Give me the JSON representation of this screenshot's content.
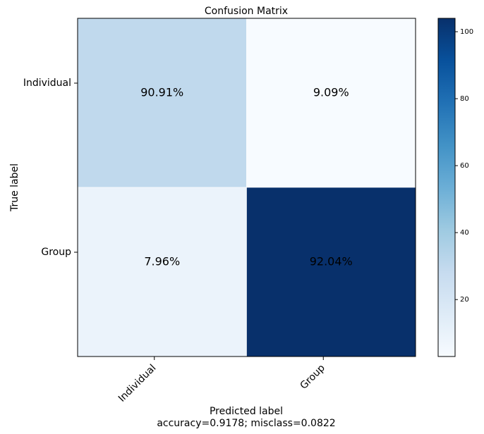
{
  "chart_data": {
    "type": "heatmap",
    "title": "Confusion Matrix",
    "xlabel": "Predicted label",
    "xlabel_sub": "accuracy=0.9178; misclass=0.0822",
    "ylabel": "True label",
    "x_categories": [
      "Individual",
      "Group"
    ],
    "y_categories": [
      "Individual",
      "Group"
    ],
    "cells": [
      [
        {
          "label": "90.91%",
          "shade": 30
        },
        {
          "label": "9.09%",
          "shade": 3
        }
      ],
      [
        {
          "label": "7.96%",
          "shade": 9
        },
        {
          "label": "92.04%",
          "shade": 104
        }
      ]
    ],
    "colorbar": {
      "min": 3,
      "max": 104,
      "ticks": [
        20,
        40,
        60,
        80,
        100
      ],
      "tick_labels": [
        "20",
        "40",
        "60",
        "80",
        "100"
      ]
    },
    "colormap": [
      "#f7fbff",
      "#deebf7",
      "#c6dbef",
      "#9ecae1",
      "#6baed6",
      "#4292c6",
      "#2171b5",
      "#08519c",
      "#08306b"
    ]
  }
}
